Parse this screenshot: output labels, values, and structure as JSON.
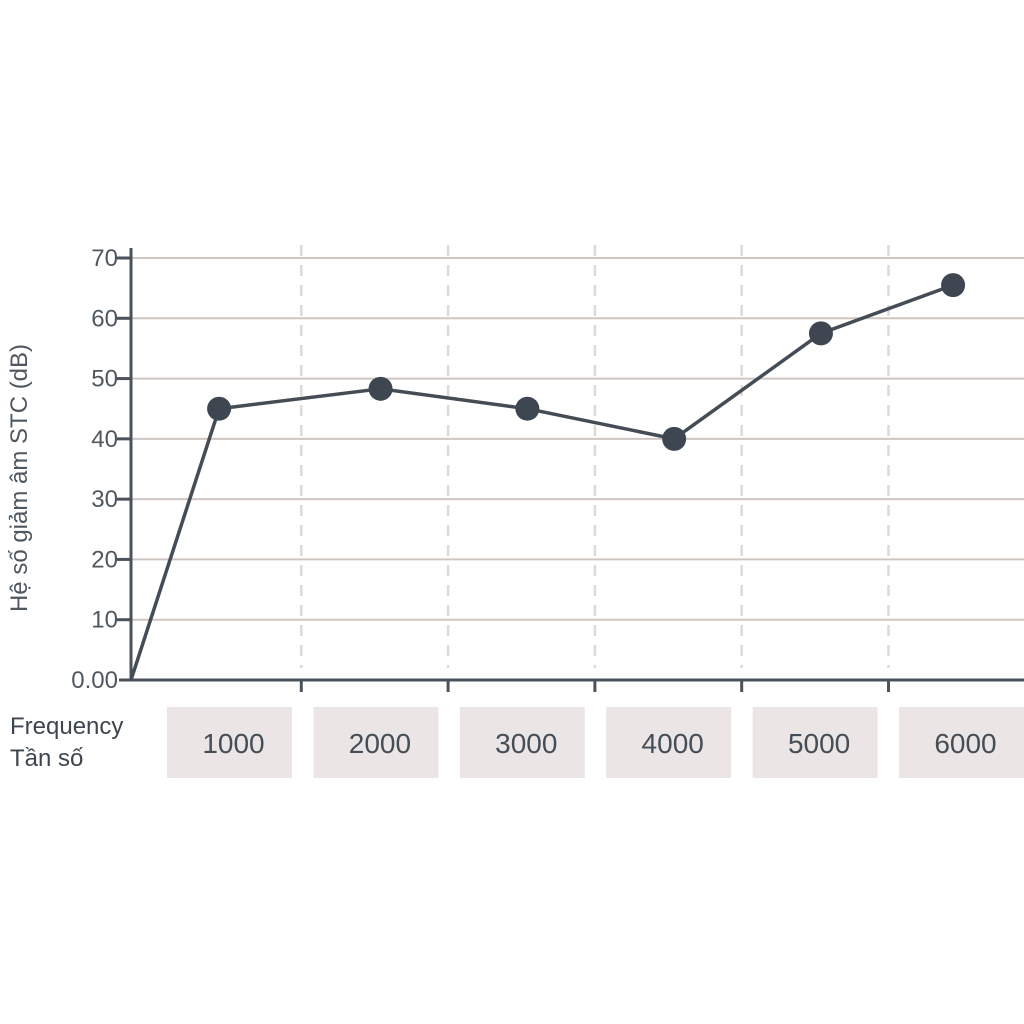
{
  "chart_data": {
    "type": "line",
    "title": "",
    "ylabel": "Hệ số giảm âm STC (dB)",
    "x_header": [
      "Frequency",
      "Tần số"
    ],
    "categories": [
      "1000",
      "2000",
      "3000",
      "4000",
      "5000",
      "6000"
    ],
    "x": [
      0,
      0.6,
      1.7,
      2.7,
      3.7,
      4.7,
      5.6
    ],
    "series": [
      {
        "values": [
          0,
          45,
          48.3,
          45,
          40,
          57.5,
          65.5
        ]
      }
    ],
    "ylim": [
      0,
      70
    ],
    "yticks": [
      "0.00",
      "10",
      "20",
      "30",
      "40",
      "50",
      "60",
      "70"
    ],
    "ytick_values": [
      0,
      10,
      20,
      30,
      40,
      50,
      60,
      70
    ],
    "grid": {
      "horizontal": true,
      "vertical_dashed": true
    },
    "colors": {
      "line": "#444c55",
      "marker": "#3e4751",
      "axis": "#4a525b",
      "hgrid": "#cfc6c2",
      "vgrid": "#dedad8",
      "category_box": "#ebe6e5",
      "text": "#4f5861"
    }
  }
}
